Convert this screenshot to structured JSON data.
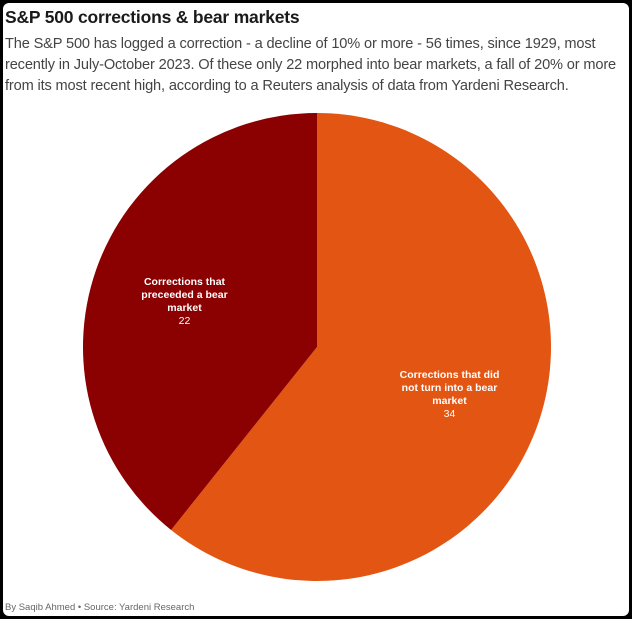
{
  "header": {
    "title": "S&P 500 corrections & bear markets",
    "subtitle": "The S&P 500 has logged a correction - a decline of 10% or more - 56 times, since 1929, most recently in July-October 2023. Of these only 22 morphed into bear markets, a fall of 20% or more from its most recent high, according to a Reuters analysis of data from Yardeni Research."
  },
  "chart_data": {
    "type": "pie",
    "title": "S&P 500 corrections & bear markets",
    "slices": [
      {
        "label_lines": [
          "Corrections that did",
          "not turn into a bear",
          "market"
        ],
        "label": "Corrections that did not turn into a bear market",
        "value": 34,
        "color": "#e35512"
      },
      {
        "label_lines": [
          "Corrections that",
          "preceeded a bear",
          "market"
        ],
        "label": "Corrections that preceeded a bear market",
        "value": 22,
        "color": "#8b0000"
      }
    ],
    "start_angle": "12 o'clock",
    "direction": "clockwise"
  },
  "footer": {
    "credit": "By Saqib Ahmed • Source: Yardeni Research"
  }
}
